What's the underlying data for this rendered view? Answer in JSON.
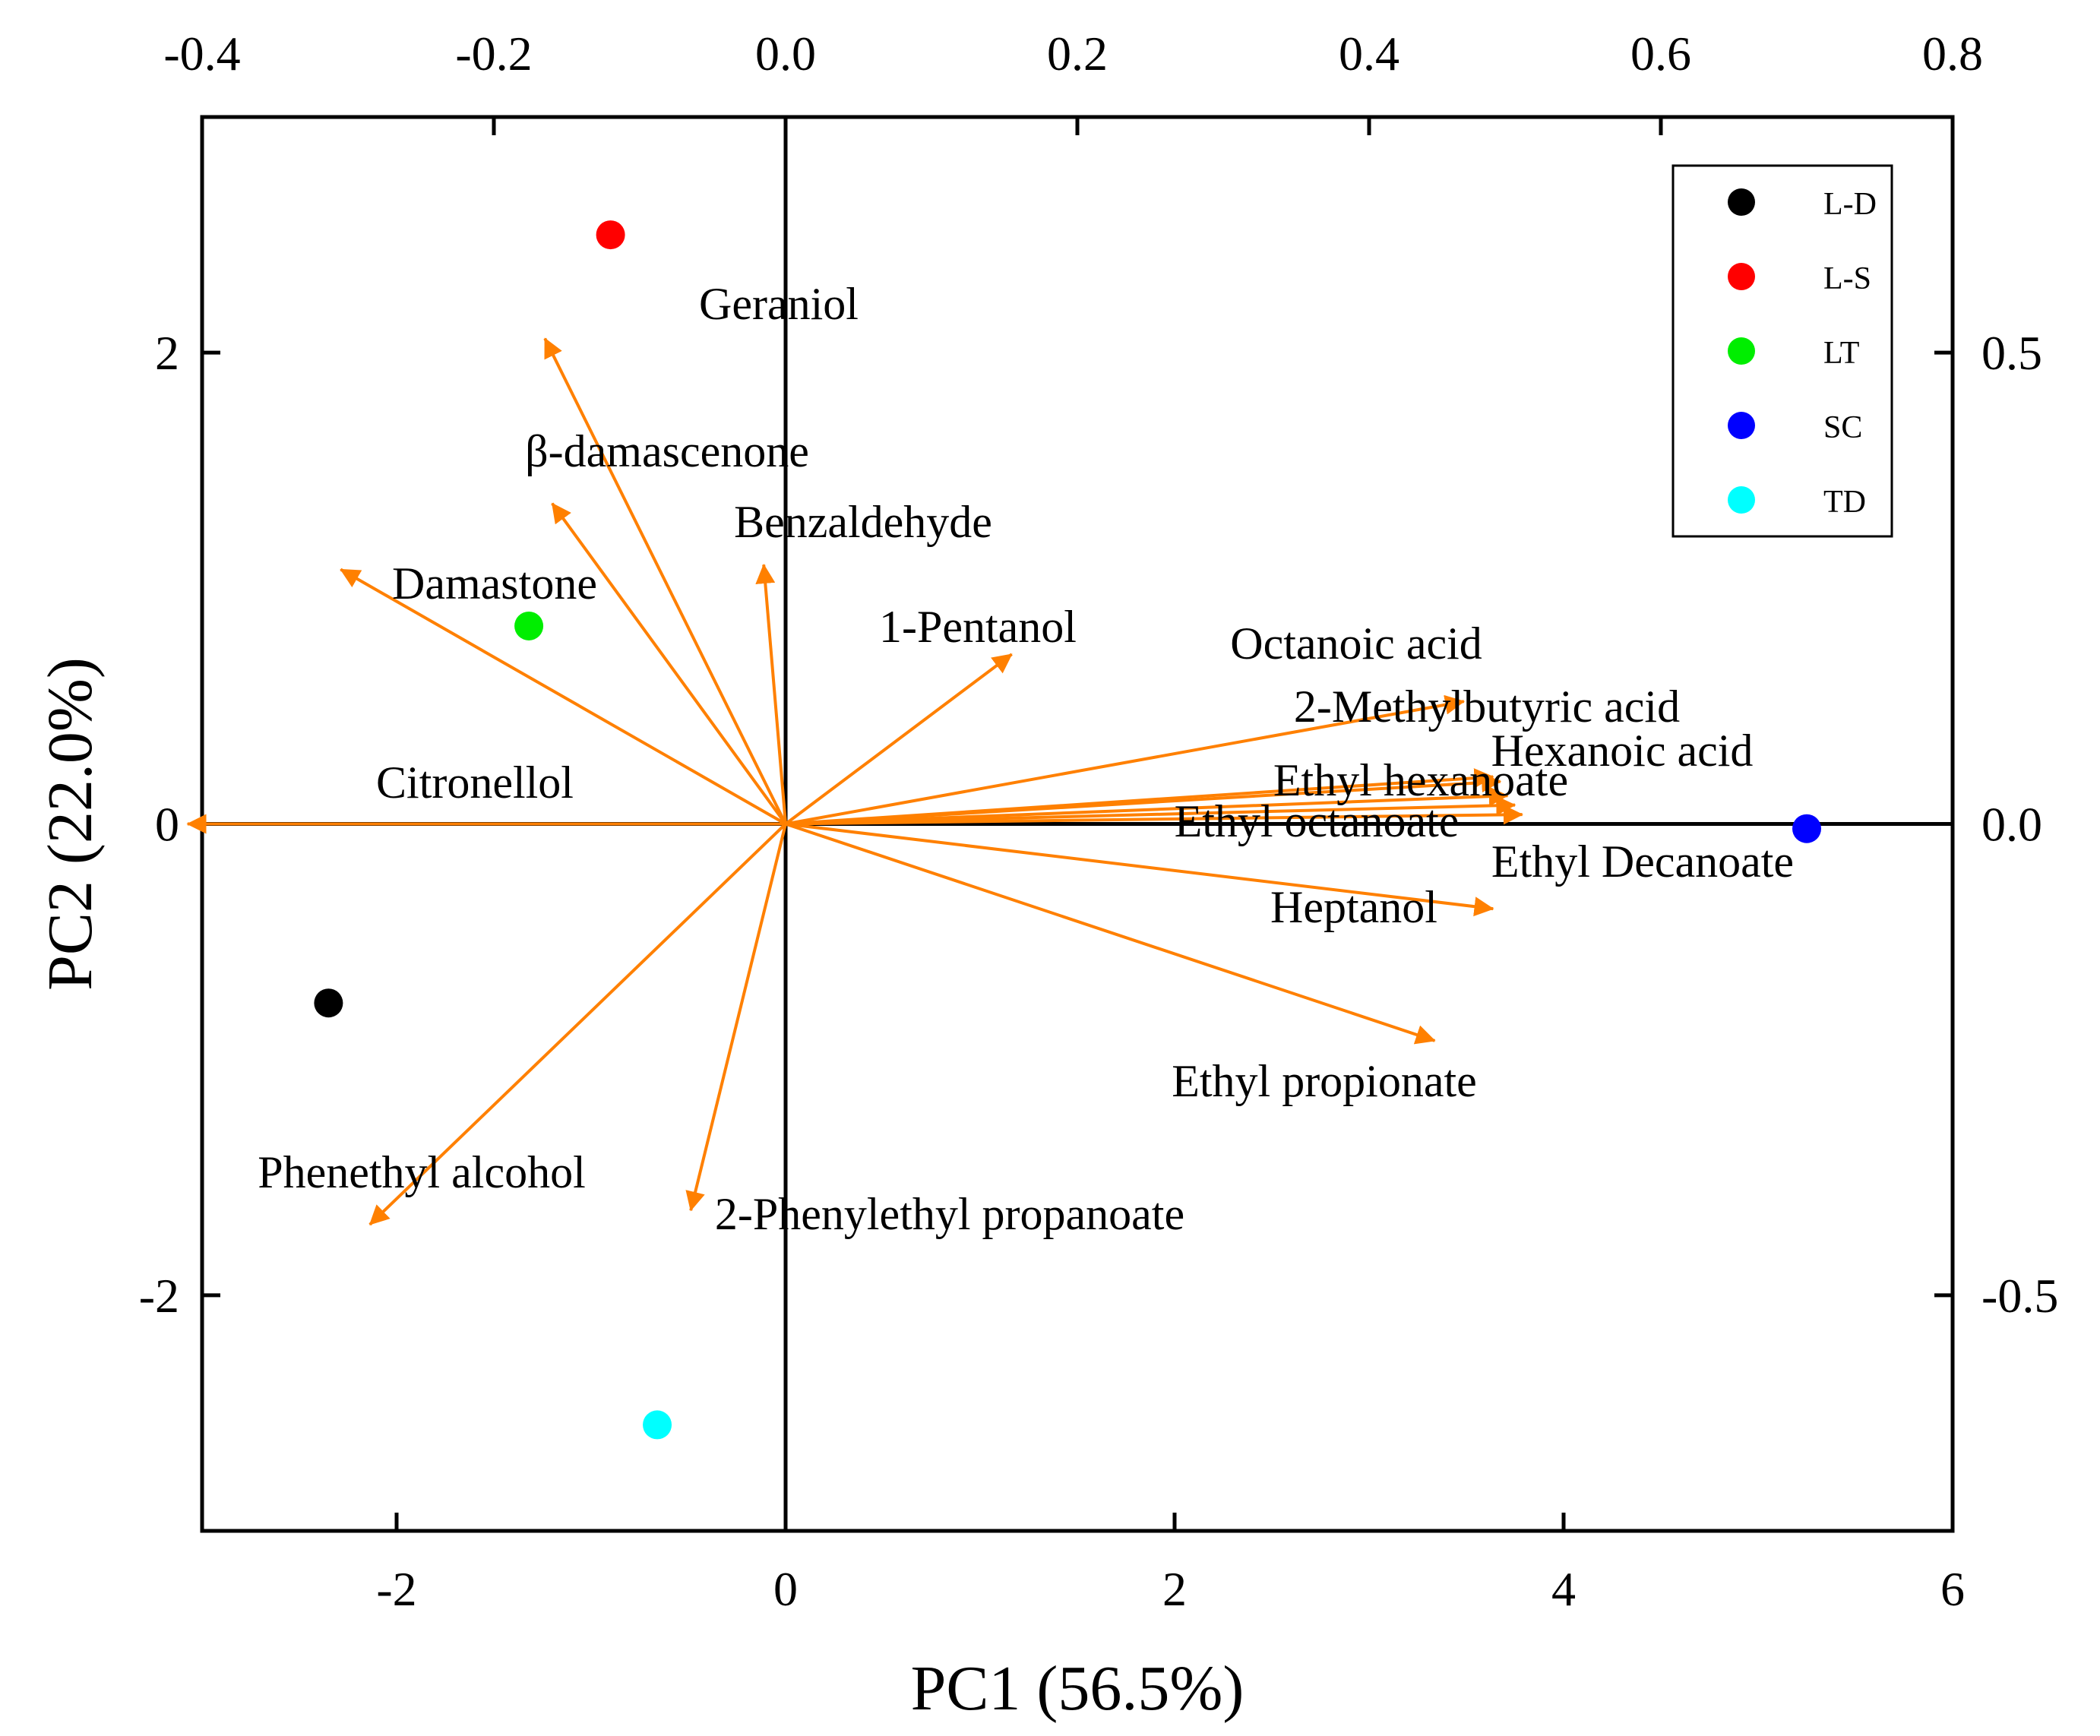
{
  "chart_data": {
    "type": "scatter",
    "title": "",
    "xlabel": "PC1 (56.5%)",
    "ylabel": "PC2 (22.0%)",
    "xlim": [
      -3,
      6
    ],
    "ylim": [
      -3,
      3
    ],
    "xticks": [
      -2,
      0,
      2,
      4,
      6
    ],
    "yticks": [
      -2,
      0,
      2
    ],
    "x_tick_labels": [
      "-2",
      "0",
      "2",
      "4",
      "6"
    ],
    "y_tick_labels": [
      "-2",
      "0",
      "2"
    ],
    "secondary_x": {
      "lim": [
        -0.4,
        0.8
      ],
      "ticks": [
        -0.4,
        -0.2,
        0.0,
        0.2,
        0.4,
        0.6,
        0.8
      ],
      "tick_labels": [
        "-0.4",
        "-0.2",
        "0.0",
        "0.2",
        "0.4",
        "0.6",
        "0.8"
      ]
    },
    "secondary_y": {
      "lim": [
        -0.75,
        0.75
      ],
      "ticks": [
        -0.5,
        0.0,
        0.5
      ],
      "tick_labels": [
        "-0.5",
        "0.0",
        "0.5"
      ]
    },
    "grid": false,
    "legend_position": "top-right",
    "series": [
      {
        "name": "L-D",
        "color": "#000000",
        "x": [
          -2.35
        ],
        "y": [
          -0.76
        ]
      },
      {
        "name": "L-S",
        "color": "#ff0000",
        "x": [
          -0.9
        ],
        "y": [
          2.5
        ]
      },
      {
        "name": "LT",
        "color": "#00ee00",
        "x": [
          -1.32
        ],
        "y": [
          0.84
        ]
      },
      {
        "name": "SC",
        "color": "#0000ff",
        "x": [
          5.25
        ],
        "y": [
          -0.02
        ]
      },
      {
        "name": "TD",
        "color": "#00ffff",
        "x": [
          -0.66
        ],
        "y": [
          -2.55
        ]
      }
    ],
    "arrow_color": "#ff8000",
    "loadings": [
      {
        "name": "Geraniol",
        "x": -0.165,
        "y": 0.515
      },
      {
        "name": "β-damascenone",
        "x": -0.16,
        "y": 0.34
      },
      {
        "name": "Benzaldehyde",
        "x": -0.015,
        "y": 0.275
      },
      {
        "name": "Damastone",
        "x": -0.305,
        "y": 0.27
      },
      {
        "name": "1-Pentanol",
        "x": 0.155,
        "y": 0.18
      },
      {
        "name": "Octanoic acid",
        "x": 0.465,
        "y": 0.13
      },
      {
        "name": "2-Methylbutyric acid",
        "x": 0.485,
        "y": 0.05
      },
      {
        "name": "Hexanoic acid",
        "x": 0.49,
        "y": 0.045
      },
      {
        "name": "Ethyl hexanoate",
        "x": 0.495,
        "y": 0.03
      },
      {
        "name": "Ethyl octanoate",
        "x": 0.5,
        "y": 0.02
      },
      {
        "name": "Ethyl Decanoate",
        "x": 0.505,
        "y": 0.01
      },
      {
        "name": "Citronellol",
        "x": -0.41,
        "y": 0.0
      },
      {
        "name": "Heptanol",
        "x": 0.485,
        "y": -0.09
      },
      {
        "name": "Ethyl propionate",
        "x": 0.445,
        "y": -0.23
      },
      {
        "name": "Phenethyl alcohol",
        "x": -0.285,
        "y": -0.425
      },
      {
        "name": "2-Phenylethyl propanoate",
        "x": -0.065,
        "y": -0.41
      }
    ]
  }
}
